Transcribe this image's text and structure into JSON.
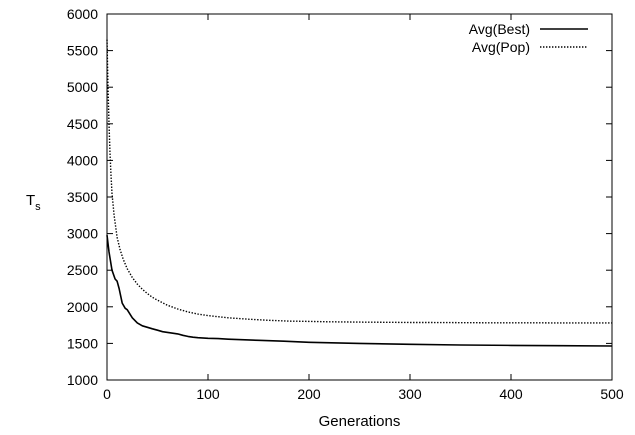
{
  "chart_data": {
    "type": "line",
    "title": "",
    "xlabel": "Generations",
    "ylabel": "T",
    "ylabel_subscript": "s",
    "xlim": [
      0,
      500
    ],
    "ylim": [
      1000,
      6000
    ],
    "xticks": [
      0,
      100,
      200,
      300,
      400,
      500
    ],
    "yticks": [
      1000,
      1500,
      2000,
      2500,
      3000,
      3500,
      4000,
      4500,
      5000,
      5500,
      6000
    ],
    "grid": false,
    "legend_position": "top-right",
    "series": [
      {
        "name": "Avg(Best)",
        "style": "solid",
        "x": [
          0,
          2,
          5,
          8,
          10,
          12,
          15,
          18,
          20,
          25,
          30,
          35,
          40,
          45,
          50,
          55,
          60,
          65,
          70,
          75,
          80,
          85,
          90,
          100,
          110,
          120,
          130,
          150,
          175,
          200,
          250,
          300,
          350,
          400,
          450,
          500
        ],
        "y": [
          2980,
          2750,
          2500,
          2380,
          2350,
          2250,
          2050,
          1980,
          1960,
          1850,
          1780,
          1740,
          1720,
          1700,
          1680,
          1660,
          1650,
          1640,
          1630,
          1610,
          1595,
          1585,
          1578,
          1570,
          1565,
          1558,
          1552,
          1542,
          1530,
          1515,
          1500,
          1488,
          1478,
          1472,
          1468,
          1465
        ]
      },
      {
        "name": "Avg(Pop)",
        "style": "dotted",
        "x": [
          0,
          1,
          2,
          3,
          4,
          5,
          7,
          10,
          13,
          16,
          20,
          25,
          30,
          35,
          40,
          45,
          50,
          60,
          70,
          80,
          90,
          100,
          120,
          140,
          160,
          180,
          200,
          220,
          240,
          260,
          280,
          300,
          320,
          340,
          360,
          380,
          400,
          420,
          440,
          460,
          480,
          500
        ],
        "y": [
          5650,
          5000,
          4500,
          4100,
          3800,
          3550,
          3250,
          2950,
          2780,
          2650,
          2520,
          2400,
          2310,
          2240,
          2180,
          2130,
          2090,
          2020,
          1970,
          1930,
          1900,
          1880,
          1850,
          1830,
          1815,
          1805,
          1800,
          1795,
          1792,
          1790,
          1788,
          1786,
          1785,
          1784,
          1783,
          1782,
          1782,
          1781,
          1780,
          1780,
          1780,
          1780
        ]
      }
    ]
  }
}
